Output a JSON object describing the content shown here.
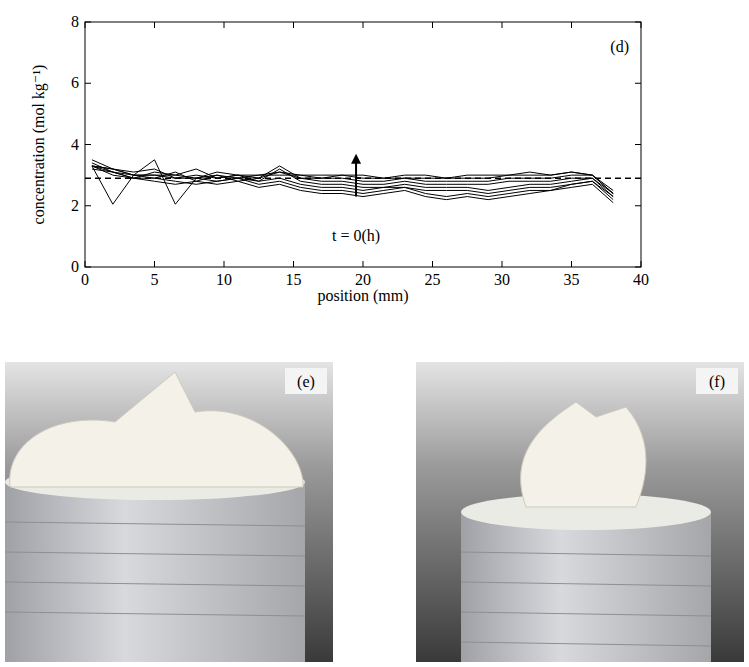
{
  "chart_data": {
    "type": "line",
    "panel_label": "(d)",
    "x_label": "position (mm)",
    "y_label": "concentration (mol kg⁻¹)",
    "xlim": [
      0,
      40
    ],
    "xticks": [
      0,
      5,
      10,
      15,
      20,
      25,
      30,
      35,
      40
    ],
    "ylim": [
      0,
      8
    ],
    "yticks": [
      0,
      2,
      4,
      6,
      8
    ],
    "grid": false,
    "x": [
      0.5,
      2,
      3.5,
      5,
      6.5,
      8,
      9.5,
      11,
      12.5,
      14,
      15.5,
      17,
      18.5,
      20,
      21.5,
      23,
      24.5,
      26,
      27.5,
      29,
      30.5,
      32,
      33.5,
      35,
      36.5,
      38
    ],
    "series": [
      {
        "color": "#000000",
        "values": [
          3.3,
          3.0,
          2.9,
          2.8,
          2.7,
          2.8,
          2.7,
          2.8,
          2.6,
          2.7,
          2.5,
          2.4,
          2.4,
          2.3,
          2.4,
          2.5,
          2.3,
          2.2,
          2.3,
          2.2,
          2.3,
          2.4,
          2.5,
          2.6,
          2.7,
          2.1
        ]
      },
      {
        "color": "#000000",
        "values": [
          3.4,
          3.1,
          2.9,
          2.9,
          2.8,
          2.7,
          2.8,
          2.9,
          2.7,
          2.8,
          2.6,
          2.5,
          2.5,
          2.4,
          2.5,
          2.6,
          2.4,
          2.3,
          2.4,
          2.3,
          2.4,
          2.5,
          2.5,
          2.7,
          2.8,
          2.2
        ]
      },
      {
        "color": "#000000",
        "values": [
          3.3,
          2.05,
          3.0,
          3.5,
          2.05,
          2.9,
          2.8,
          2.9,
          2.8,
          2.9,
          2.7,
          2.6,
          2.6,
          2.5,
          2.6,
          2.6,
          2.5,
          2.5,
          2.5,
          2.4,
          2.5,
          2.6,
          2.6,
          2.7,
          2.8,
          2.3
        ]
      },
      {
        "color": "#000000",
        "values": [
          3.5,
          3.2,
          3.1,
          3.2,
          2.9,
          3.0,
          2.9,
          3.0,
          2.8,
          3.2,
          2.8,
          2.7,
          2.7,
          2.6,
          2.6,
          2.7,
          2.6,
          2.6,
          2.6,
          2.5,
          2.6,
          2.7,
          2.7,
          2.8,
          2.9,
          2.3
        ]
      },
      {
        "color": "#000000",
        "values": [
          3.3,
          3.2,
          3.0,
          2.9,
          3.1,
          2.8,
          3.0,
          2.8,
          2.9,
          3.1,
          2.9,
          2.8,
          2.8,
          2.7,
          2.7,
          2.8,
          2.7,
          2.7,
          2.7,
          2.7,
          2.8,
          2.8,
          2.8,
          2.9,
          2.9,
          2.4
        ]
      },
      {
        "color": "#000000",
        "values": [
          3.2,
          3.1,
          2.9,
          3.1,
          3.0,
          3.2,
          2.9,
          3.0,
          2.9,
          3.3,
          2.9,
          2.9,
          2.9,
          2.8,
          2.8,
          2.9,
          2.8,
          2.8,
          2.8,
          2.8,
          2.9,
          2.9,
          2.9,
          3.0,
          3.0,
          2.4
        ]
      },
      {
        "color": "#000000",
        "values": [
          3.3,
          3.2,
          3.0,
          3.0,
          3.0,
          2.9,
          3.1,
          3.0,
          3.0,
          3.1,
          3.0,
          3.0,
          3.0,
          2.9,
          2.9,
          2.9,
          2.9,
          2.9,
          2.9,
          2.9,
          3.0,
          3.0,
          3.0,
          3.1,
          3.0,
          2.5
        ]
      },
      {
        "color": "#000000",
        "values": [
          3.3,
          3.1,
          3.0,
          3.0,
          2.9,
          2.9,
          3.0,
          2.9,
          3.0,
          3.0,
          3.0,
          2.9,
          3.0,
          3.0,
          2.9,
          3.0,
          3.0,
          2.9,
          3.0,
          3.0,
          3.0,
          3.1,
          3.0,
          3.1,
          3.0,
          2.4
        ]
      }
    ],
    "reference_lines": [
      {
        "value": 2.9,
        "line_style": "dashed"
      }
    ],
    "arrow": {
      "x": 19.5,
      "from": 2.3,
      "to": 3.7
    },
    "annotation": {
      "text": "t = 0(h)",
      "x": 19.5,
      "y": 1.0
    }
  },
  "photos": [
    {
      "label": "(e)"
    },
    {
      "label": "(f)"
    }
  ]
}
